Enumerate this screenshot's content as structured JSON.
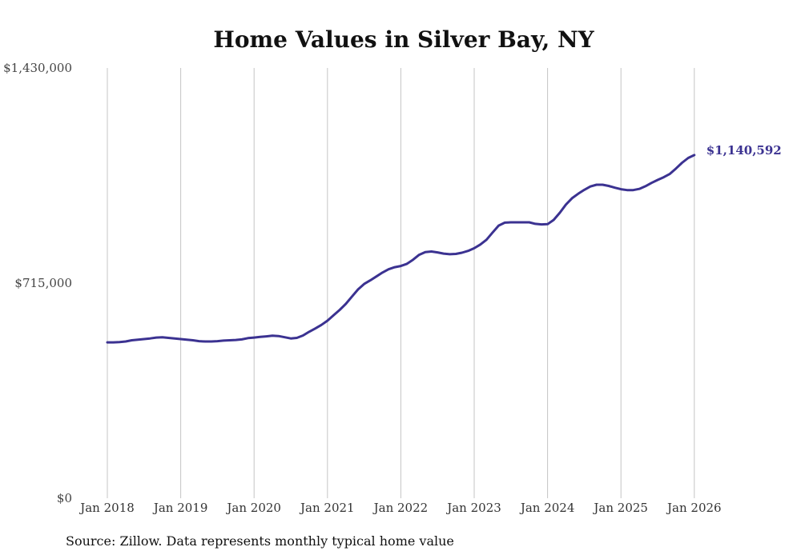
{
  "chart_data": {
    "type": "line",
    "title": "Home Values in Silver Bay, NY",
    "xlabel": "",
    "ylabel": "",
    "ylim": [
      0,
      1430000
    ],
    "y_ticks": [
      0,
      715000,
      1430000
    ],
    "y_tick_labels": [
      "$0",
      "$715,000",
      "$1,430,000"
    ],
    "x_ticks": [
      "Jan 2018",
      "Jan 2019",
      "Jan 2020",
      "Jan 2021",
      "Jan 2022",
      "Jan 2023",
      "Jan 2024",
      "Jan 2025",
      "Jan 2026"
    ],
    "grid": "vertical",
    "color": "#3b3291",
    "end_label": "$1,140,592",
    "series": [
      {
        "name": "Typical home value",
        "points": [
          [
            2018.0,
            518000
          ],
          [
            2018.083,
            518000
          ],
          [
            2018.167,
            519000
          ],
          [
            2018.25,
            521000
          ],
          [
            2018.333,
            525000
          ],
          [
            2018.417,
            527000
          ],
          [
            2018.5,
            529000
          ],
          [
            2018.583,
            531000
          ],
          [
            2018.667,
            534000
          ],
          [
            2018.75,
            535000
          ],
          [
            2018.833,
            533000
          ],
          [
            2018.917,
            531000
          ],
          [
            2019.0,
            529000
          ],
          [
            2019.083,
            527000
          ],
          [
            2019.167,
            525000
          ],
          [
            2019.25,
            522000
          ],
          [
            2019.333,
            521000
          ],
          [
            2019.417,
            521000
          ],
          [
            2019.5,
            522000
          ],
          [
            2019.583,
            524000
          ],
          [
            2019.667,
            525000
          ],
          [
            2019.75,
            526000
          ],
          [
            2019.833,
            528000
          ],
          [
            2019.917,
            532000
          ],
          [
            2020.0,
            534000
          ],
          [
            2020.083,
            536000
          ],
          [
            2020.167,
            538000
          ],
          [
            2020.25,
            540000
          ],
          [
            2020.333,
            539000
          ],
          [
            2020.417,
            535000
          ],
          [
            2020.5,
            531000
          ],
          [
            2020.583,
            533000
          ],
          [
            2020.667,
            541000
          ],
          [
            2020.75,
            553000
          ],
          [
            2020.833,
            564000
          ],
          [
            2020.917,
            576000
          ],
          [
            2021.0,
            590000
          ],
          [
            2021.083,
            608000
          ],
          [
            2021.167,
            626000
          ],
          [
            2021.25,
            646000
          ],
          [
            2021.333,
            670000
          ],
          [
            2021.417,
            694000
          ],
          [
            2021.5,
            712000
          ],
          [
            2021.583,
            724000
          ],
          [
            2021.667,
            737000
          ],
          [
            2021.75,
            750000
          ],
          [
            2021.833,
            761000
          ],
          [
            2021.917,
            768000
          ],
          [
            2022.0,
            772000
          ],
          [
            2022.083,
            779000
          ],
          [
            2022.167,
            793000
          ],
          [
            2022.25,
            809000
          ],
          [
            2022.333,
            818000
          ],
          [
            2022.417,
            820000
          ],
          [
            2022.5,
            817000
          ],
          [
            2022.583,
            813000
          ],
          [
            2022.667,
            811000
          ],
          [
            2022.75,
            812000
          ],
          [
            2022.833,
            816000
          ],
          [
            2022.917,
            822000
          ],
          [
            2023.0,
            831000
          ],
          [
            2023.083,
            843000
          ],
          [
            2023.167,
            859000
          ],
          [
            2023.25,
            883000
          ],
          [
            2023.333,
            906000
          ],
          [
            2023.417,
            916000
          ],
          [
            2023.5,
            917000
          ],
          [
            2023.583,
            917000
          ],
          [
            2023.667,
            917000
          ],
          [
            2023.75,
            917000
          ],
          [
            2023.833,
            912000
          ],
          [
            2023.917,
            910000
          ],
          [
            2024.0,
            911000
          ],
          [
            2024.083,
            925000
          ],
          [
            2024.167,
            949000
          ],
          [
            2024.25,
            976000
          ],
          [
            2024.333,
            997000
          ],
          [
            2024.417,
            1012000
          ],
          [
            2024.5,
            1025000
          ],
          [
            2024.583,
            1036000
          ],
          [
            2024.667,
            1042000
          ],
          [
            2024.75,
            1042000
          ],
          [
            2024.833,
            1038000
          ],
          [
            2024.917,
            1032000
          ],
          [
            2025.0,
            1027000
          ],
          [
            2025.083,
            1024000
          ],
          [
            2025.167,
            1024000
          ],
          [
            2025.25,
            1028000
          ],
          [
            2025.333,
            1037000
          ],
          [
            2025.417,
            1048000
          ],
          [
            2025.5,
            1058000
          ],
          [
            2025.583,
            1067000
          ],
          [
            2025.667,
            1078000
          ],
          [
            2025.75,
            1096000
          ],
          [
            2025.833,
            1115000
          ],
          [
            2025.917,
            1131000
          ],
          [
            2026.0,
            1140592
          ]
        ]
      }
    ]
  },
  "footer": {
    "source": "Source: Zillow. Data represents monthly typical home value"
  }
}
